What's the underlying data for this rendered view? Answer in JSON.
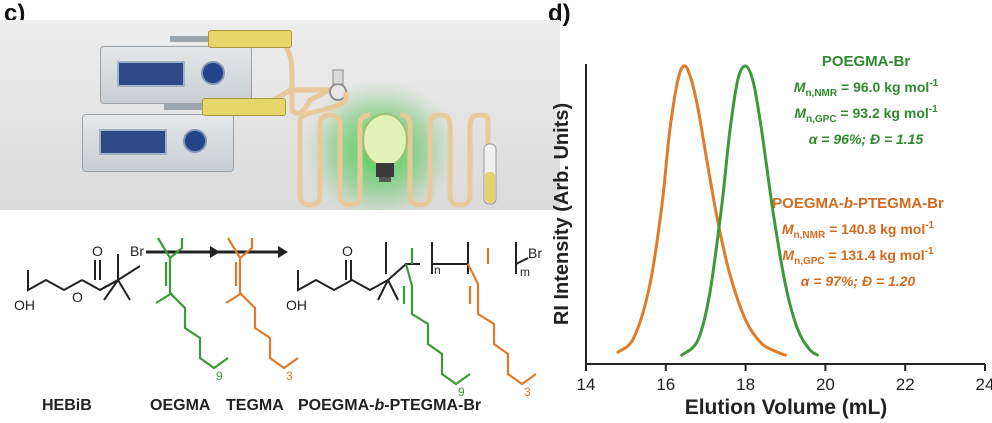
{
  "panel_c": {
    "label": "c)",
    "molecules": {
      "initiator": "HEBiB",
      "monomer1": "OEGMA",
      "monomer2": "TEGMA",
      "product": "POEGMA-b-PTEGMA-Br",
      "product_parts": [
        "POEGMA-",
        "b",
        "-PTEGMA-Br"
      ],
      "atom_br": "Br",
      "atom_o": "O",
      "atom_oh": "OH",
      "sub_9": "9",
      "sub_3": "3",
      "sub_n": "n",
      "sub_m": "m"
    }
  },
  "panel_d": {
    "label": "d)"
  },
  "colors": {
    "orange": "#e07b2a",
    "green": "#3d9a3a",
    "green_text": "#2f8a2f",
    "orange_text": "#d46a1e",
    "black": "#222222"
  },
  "chart_data": {
    "type": "line",
    "xlabel": "Elution Volume (mL)",
    "ylabel": "RI Intensity (Arb. Units)",
    "xlim": [
      14,
      24
    ],
    "x_ticks": [
      "14",
      "16",
      "18",
      "20",
      "22",
      "24"
    ],
    "series": [
      {
        "name": "POEGMA-b-PTEGMA-Br",
        "color": "#e07b2a",
        "peak_x": 16.45,
        "x": [
          14.8,
          15.2,
          15.6,
          15.9,
          16.1,
          16.3,
          16.45,
          16.6,
          16.8,
          17.0,
          17.3,
          17.6,
          18.0,
          18.4,
          18.8,
          19.0
        ],
        "y": [
          0.02,
          0.07,
          0.25,
          0.52,
          0.78,
          0.95,
          1.0,
          0.97,
          0.86,
          0.7,
          0.47,
          0.29,
          0.13,
          0.05,
          0.02,
          0.01
        ]
      },
      {
        "name": "POEGMA-Br",
        "color": "#3d9a3a",
        "peak_x": 18.0,
        "x": [
          16.4,
          16.8,
          17.1,
          17.4,
          17.6,
          17.8,
          18.0,
          18.2,
          18.4,
          18.7,
          19.0,
          19.3,
          19.6,
          19.8
        ],
        "y": [
          0.01,
          0.06,
          0.22,
          0.52,
          0.77,
          0.95,
          1.0,
          0.94,
          0.78,
          0.49,
          0.25,
          0.1,
          0.03,
          0.01
        ]
      }
    ],
    "annotations": {
      "green": {
        "title": "POEGMA-Br",
        "lines": [
          {
            "pre": "M",
            "sub": "n,NMR",
            "value": " = 96.0 kg mol",
            "sup": "-1"
          },
          {
            "pre": "M",
            "sub": "n,GPC",
            "value": " = 93.2 kg mol",
            "sup": "-1"
          },
          {
            "plain": "α = 96%; Đ = 1.15"
          }
        ]
      },
      "orange": {
        "title_parts": [
          "POEGMA-",
          "b",
          "-PTEGMA-Br"
        ],
        "lines": [
          {
            "pre": "M",
            "sub": "n,NMR",
            "value": " = 140.8 kg mol",
            "sup": "-1"
          },
          {
            "pre": "M",
            "sub": "n,GPC",
            "value": " = 131.4 kg mol",
            "sup": "-1"
          },
          {
            "plain": "α = 97%; Đ = 1.20"
          }
        ]
      }
    }
  }
}
